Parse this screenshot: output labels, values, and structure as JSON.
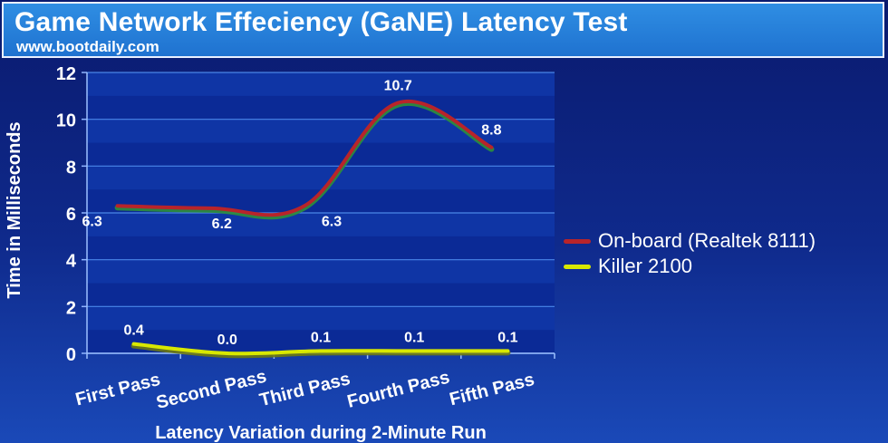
{
  "header": {
    "title": "Game Network Effeciency (GaNE) Latency Test",
    "subtitle": "www.bootdaily.com"
  },
  "colors": {
    "series_realtek": "#b8242a",
    "series_killer": "#d8e800"
  },
  "chart_data": {
    "type": "line",
    "title": "Game Network Effeciency (GaNE) Latency Test",
    "xlabel": "Latency Variation during 2-Minute Run",
    "ylabel": "Time in Milliseconds",
    "categories": [
      "First Pass",
      "Second Pass",
      "Third Pass",
      "Fourth Pass",
      "Fifth Pass"
    ],
    "ylim": [
      0,
      12
    ],
    "yticks": [
      "0",
      "2",
      "4",
      "6",
      "8",
      "10",
      "12"
    ],
    "grid": true,
    "legend_position": "right",
    "series": [
      {
        "name": "On-board (Realtek 8111)",
        "values": [
          6.3,
          6.2,
          6.3,
          10.7,
          8.8
        ],
        "labels": [
          "6.3",
          "6.2",
          "6.3",
          "10.7",
          "8.8"
        ]
      },
      {
        "name": "Killer 2100",
        "values": [
          0.4,
          0.0,
          0.1,
          0.1,
          0.1
        ],
        "labels": [
          "0.4",
          "0.0",
          "0.1",
          "0.1",
          "0.1"
        ]
      }
    ]
  }
}
